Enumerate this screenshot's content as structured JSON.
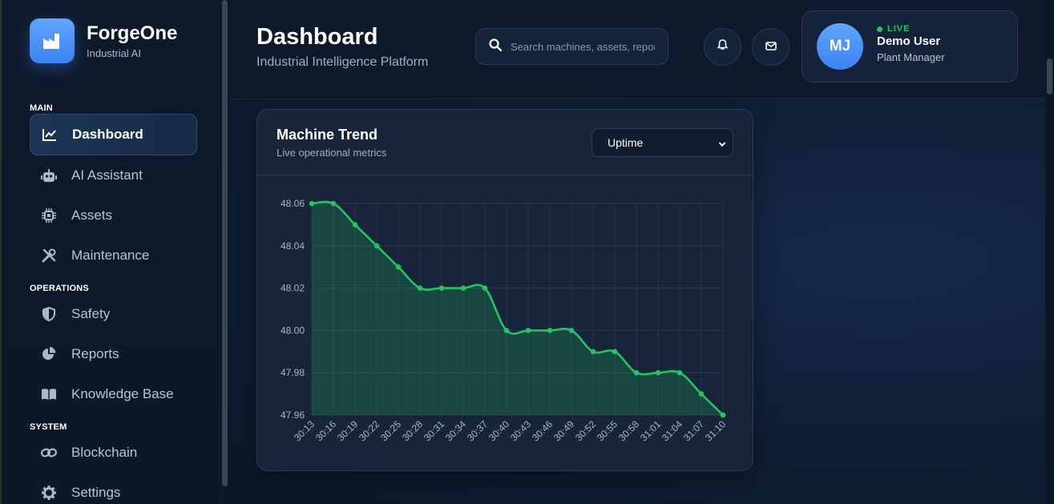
{
  "brand": {
    "name": "ForgeOne",
    "subtitle": "Industrial AI"
  },
  "sidebar": {
    "sections": [
      {
        "label": "MAIN",
        "items": [
          {
            "label": "Dashboard",
            "icon": "line-chart-icon",
            "active": true
          },
          {
            "label": "AI Assistant",
            "icon": "robot-icon"
          },
          {
            "label": "Assets",
            "icon": "chip-icon"
          },
          {
            "label": "Maintenance",
            "icon": "tools-icon"
          }
        ]
      },
      {
        "label": "OPERATIONS",
        "items": [
          {
            "label": "Safety",
            "icon": "shield-icon"
          },
          {
            "label": "Reports",
            "icon": "pie-chart-icon"
          },
          {
            "label": "Knowledge Base",
            "icon": "book-icon"
          }
        ]
      },
      {
        "label": "SYSTEM",
        "items": [
          {
            "label": "Blockchain",
            "icon": "link-icon"
          },
          {
            "label": "Settings",
            "icon": "gear-icon"
          }
        ]
      }
    ]
  },
  "header": {
    "title": "Dashboard",
    "subtitle": "Industrial Intelligence Platform",
    "search_placeholder": "Search machines, assets, reports...",
    "user": {
      "initials": "MJ",
      "status": "LIVE",
      "name": "Demo User",
      "role": "Plant Manager"
    }
  },
  "card": {
    "title": "Machine Trend",
    "subtitle": "Live operational metrics",
    "metric_selected": "Uptime"
  },
  "colors": {
    "accent": "#3b82f6",
    "line": "#22c55e",
    "live": "#22c55e"
  },
  "chart_data": {
    "type": "area",
    "x": [
      "30:13",
      "30:16",
      "30:19",
      "30:22",
      "30:25",
      "30:28",
      "30:31",
      "30:34",
      "30:37",
      "30:40",
      "30:43",
      "30:46",
      "30:49",
      "30:52",
      "30:55",
      "30:58",
      "31:01",
      "31:04",
      "31:07",
      "31:10"
    ],
    "series": [
      {
        "values": [
          48.06,
          48.06,
          48.05,
          48.04,
          48.03,
          48.02,
          48.02,
          48.02,
          48.02,
          48.0,
          48.0,
          48.0,
          48.0,
          47.99,
          47.99,
          47.98,
          47.98,
          47.98,
          47.97,
          47.96
        ]
      }
    ],
    "y_ticks": [
      "48.06",
      "48.04",
      "48.02",
      "48.00",
      "47.98",
      "47.96"
    ],
    "ylim": [
      47.96,
      48.06
    ],
    "grid": true,
    "legend": "none"
  }
}
